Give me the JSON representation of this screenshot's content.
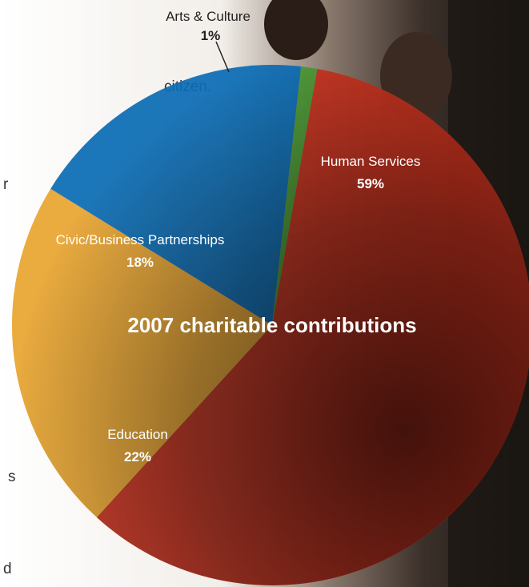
{
  "body_text_fragments": [
    "citizen.",
    "r",
    "s",
    "d"
  ],
  "chart_data": {
    "type": "pie",
    "title": "2007 charitable contributions",
    "slices": [
      {
        "label": "Human Services",
        "value": 59,
        "display": "59%",
        "color": "#c8321e"
      },
      {
        "label": "Education",
        "value": 22,
        "display": "22%",
        "color": "#e8a530"
      },
      {
        "label": "Civic/Business Partnerships",
        "value": 18,
        "display": "18%",
        "color": "#0b6db5"
      },
      {
        "label": "Arts & Culture",
        "value": 1,
        "display": "1%",
        "color": "#4a9a34"
      }
    ]
  }
}
